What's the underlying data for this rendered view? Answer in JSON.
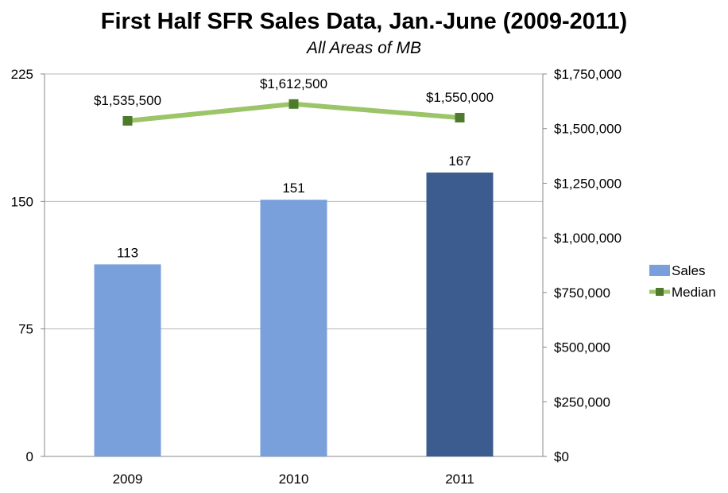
{
  "chart_data": {
    "type": "bar",
    "title": "First Half SFR Sales Data, Jan.-June (2009-2011)",
    "subtitle": "All Areas of MB",
    "categories": [
      "2009",
      "2010",
      "2011"
    ],
    "y_left": {
      "range": [
        0,
        225
      ],
      "ticks": [
        0,
        75,
        150,
        225
      ],
      "tick_labels": [
        "0",
        "75",
        "150",
        "225"
      ]
    },
    "y_right": {
      "range": [
        0,
        1750000
      ],
      "ticks": [
        0,
        250000,
        500000,
        750000,
        1000000,
        1250000,
        1500000,
        1750000
      ],
      "tick_labels": [
        "$0",
        "$250,000",
        "$500,000",
        "$750,000",
        "$1,000,000",
        "$1,250,000",
        "$1,500,000",
        "$1,750,000"
      ]
    },
    "grid": true,
    "legend_position": "right",
    "series": [
      {
        "name": "Sales",
        "type": "bar",
        "axis": "left",
        "values": [
          113,
          151,
          167
        ],
        "labels": [
          "113",
          "151",
          "167"
        ],
        "colors": [
          "#7aa0dc",
          "#7aa0dc",
          "#3c5b8f"
        ]
      },
      {
        "name": "Median",
        "type": "line",
        "axis": "right",
        "values": [
          1535500,
          1612500,
          1550000
        ],
        "labels": [
          "$1,535,500",
          "$1,612,500",
          "$1,550,000"
        ],
        "line_color": "#9cc56a",
        "marker_color": "#4e7a2c"
      }
    ]
  }
}
